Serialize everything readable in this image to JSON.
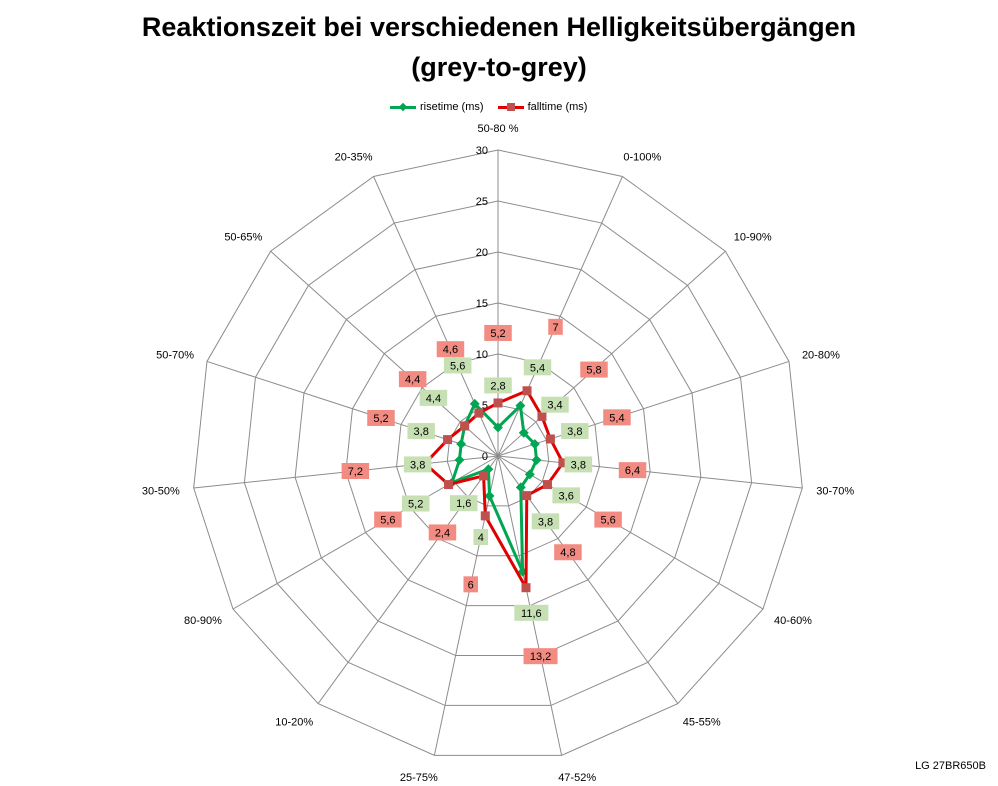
{
  "title_line1": "Reaktionszeit bei verschiedenen Helligkeitsübergängen",
  "title_line2": "(grey-to-grey)",
  "footer_text": "LG 27BR650B",
  "legend": [
    {
      "name": "risetime (ms)",
      "color": "#00a651",
      "marker": "diamond"
    },
    {
      "name": "falltime (ms)",
      "color": "#e00000",
      "marker": "square"
    }
  ],
  "chart_data": {
    "type": "radar",
    "title": "Reaktionszeit bei verschiedenen Helligkeitsübergängen (grey-to-grey)",
    "categories": [
      "50-80 %",
      "0-100%",
      "10-90%",
      "20-80%",
      "30-70%",
      "40-60%",
      "45-55%",
      "47-52%",
      "25-75%",
      "10-20%",
      "80-90%",
      "30-50%",
      "50-70%",
      "50-65%",
      "20-35%"
    ],
    "range": [
      0,
      30
    ],
    "ticks": [
      0,
      5,
      10,
      15,
      20,
      25,
      30
    ],
    "tick_labels": [
      "0",
      "5",
      "10",
      "15",
      "20",
      "25",
      "30"
    ],
    "grid": true,
    "legend_position": "top",
    "series": [
      {
        "name": "risetime (ms)",
        "color": "#00a651",
        "label_bg": "#c6e0b4",
        "values": [
          2.8,
          5.4,
          3.4,
          3.8,
          3.8,
          3.6,
          3.8,
          11.6,
          4,
          1.6,
          5.2,
          3.8,
          3.8,
          4.4,
          5.6
        ],
        "labels": [
          "2,8",
          "5,4",
          "3,4",
          "3,8",
          "3,8",
          "3,6",
          "3,8",
          "11,6",
          "4",
          "1,6",
          "5,2",
          "3,8",
          "3,8",
          "4,4",
          "5,6"
        ]
      },
      {
        "name": "falltime (ms)",
        "color": "#e00000",
        "label_bg": "#f28b82",
        "values": [
          5.2,
          7,
          5.8,
          5.4,
          6.4,
          5.6,
          4.8,
          13.2,
          6,
          2.4,
          5.6,
          7.2,
          5.2,
          4.4,
          4.6
        ],
        "labels": [
          "5,2",
          "7",
          "5,8",
          "5,4",
          "6,4",
          "5,6",
          "4,8",
          "13,2",
          "6",
          "2,4",
          "5,6",
          "7,2",
          "5,2",
          "4,4",
          "4,6"
        ]
      }
    ]
  }
}
